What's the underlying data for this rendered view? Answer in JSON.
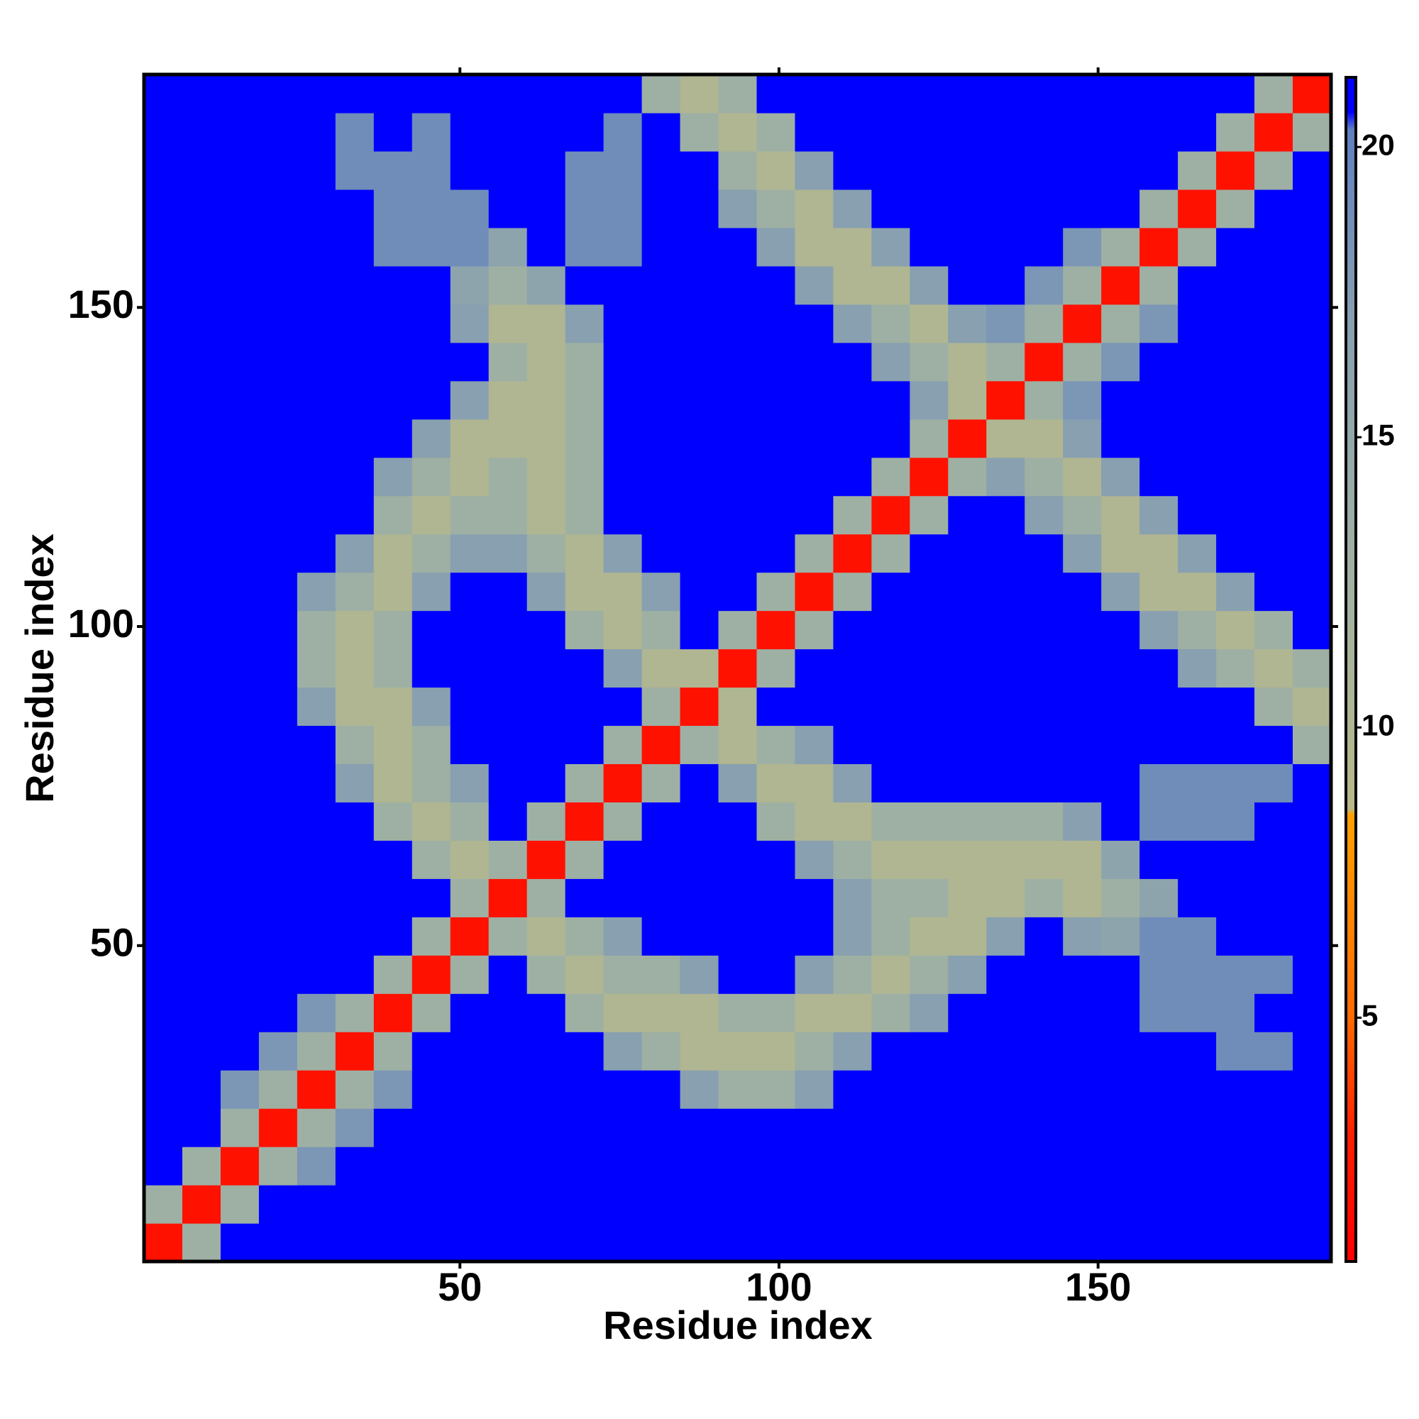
{
  "chart_data": {
    "type": "heatmap",
    "x_label": "Residue index",
    "y_label": "Residue index",
    "x": [
      3.5,
      9.5,
      15.5,
      21.5,
      27.5,
      33.5,
      39.5,
      45.5,
      51.5,
      57.5,
      63.5,
      69.5,
      75.5,
      81.5,
      87.5,
      93.5,
      99.5,
      105.5,
      111.5,
      117.5,
      123.5,
      129.5,
      135.5,
      141.5,
      147.5,
      153.5,
      159.5,
      165.5,
      171.5,
      177.5,
      183.5
    ],
    "y": [
      3.5,
      9.5,
      15.5,
      21.5,
      27.5,
      33.5,
      39.5,
      45.5,
      51.5,
      57.5,
      63.5,
      69.5,
      75.5,
      81.5,
      87.5,
      93.5,
      99.5,
      105.5,
      111.5,
      117.5,
      123.5,
      129.5,
      135.5,
      141.5,
      147.5,
      153.5,
      159.5,
      165.5,
      171.5,
      177.5,
      183.5
    ],
    "xlim": [
      0.5,
      186.5
    ],
    "ylim": [
      0.5,
      186.5
    ],
    "xticks": [
      50,
      100,
      150
    ],
    "yticks": [
      50,
      100,
      150
    ],
    "zlim": [
      0.8,
      21.2
    ],
    "zticks": [
      5,
      10,
      15,
      20
    ],
    "colorscale": [
      [
        0.8,
        "#ff0000"
      ],
      [
        3,
        "#ff2000"
      ],
      [
        5,
        "#ff6a00"
      ],
      [
        8.5,
        "#ffa000"
      ],
      [
        8.6,
        "#b8b888"
      ],
      [
        12,
        "#a4b4a0"
      ],
      [
        17,
        "#88a0b0"
      ],
      [
        20.3,
        "#6080c0"
      ],
      [
        20.6,
        "#0000ff"
      ],
      [
        21.2,
        "#0000ff"
      ]
    ],
    "z": [
      [
        2,
        13,
        21,
        21,
        21,
        21,
        21,
        21,
        21,
        21,
        21,
        21,
        21,
        21,
        21,
        21,
        21,
        21,
        21,
        21,
        21,
        21,
        21,
        21,
        21,
        21,
        21,
        21,
        21,
        21,
        21
      ],
      [
        13,
        2,
        13,
        21,
        21,
        21,
        21,
        21,
        21,
        21,
        21,
        21,
        21,
        21,
        21,
        21,
        21,
        21,
        21,
        21,
        21,
        21,
        21,
        21,
        21,
        21,
        21,
        21,
        21,
        21,
        21
      ],
      [
        21,
        13,
        2,
        13,
        18,
        21,
        21,
        21,
        21,
        21,
        21,
        21,
        21,
        21,
        21,
        21,
        21,
        21,
        21,
        21,
        21,
        21,
        21,
        21,
        21,
        21,
        21,
        21,
        21,
        21,
        21
      ],
      [
        21,
        21,
        13,
        2,
        13,
        18,
        21,
        21,
        21,
        21,
        21,
        21,
        21,
        21,
        21,
        21,
        21,
        21,
        21,
        21,
        21,
        21,
        21,
        21,
        21,
        21,
        21,
        21,
        21,
        21,
        21
      ],
      [
        21,
        21,
        18,
        13,
        2,
        13,
        18,
        21,
        21,
        21,
        21,
        21,
        21,
        21,
        17,
        13,
        13,
        17,
        21,
        21,
        21,
        21,
        21,
        21,
        21,
        21,
        21,
        21,
        21,
        21,
        21
      ],
      [
        21,
        21,
        21,
        18,
        13,
        2,
        13,
        21,
        21,
        21,
        21,
        21,
        17,
        13,
        10,
        10,
        10,
        13,
        17,
        21,
        21,
        21,
        21,
        21,
        21,
        21,
        21,
        21,
        19,
        19,
        21
      ],
      [
        21,
        21,
        21,
        21,
        18,
        13,
        2,
        13,
        21,
        21,
        21,
        13,
        10,
        10,
        10,
        13,
        13,
        10,
        10,
        13,
        17,
        21,
        21,
        21,
        21,
        21,
        19,
        19,
        19,
        21,
        21
      ],
      [
        21,
        21,
        21,
        21,
        21,
        21,
        13,
        2,
        13,
        21,
        13,
        10,
        13,
        13,
        17,
        21,
        21,
        17,
        13,
        10,
        13,
        17,
        21,
        21,
        21,
        21,
        19,
        19,
        19,
        19,
        21
      ],
      [
        21,
        21,
        21,
        21,
        21,
        21,
        21,
        13,
        2,
        13,
        10,
        13,
        17,
        21,
        21,
        21,
        21,
        21,
        17,
        13,
        10,
        10,
        17,
        21,
        17,
        16,
        19,
        19,
        21,
        21,
        21
      ],
      [
        21,
        21,
        21,
        21,
        21,
        21,
        21,
        21,
        13,
        2,
        13,
        21,
        21,
        21,
        21,
        21,
        21,
        21,
        17,
        13,
        13,
        10,
        10,
        13,
        10,
        13,
        16,
        21,
        21,
        21,
        21
      ],
      [
        21,
        21,
        21,
        21,
        21,
        21,
        21,
        13,
        10,
        13,
        2,
        13,
        21,
        21,
        21,
        21,
        21,
        17,
        13,
        10,
        10,
        10,
        10,
        10,
        10,
        16,
        21,
        21,
        21,
        21,
        21
      ],
      [
        21,
        21,
        21,
        21,
        21,
        21,
        13,
        10,
        13,
        21,
        13,
        2,
        13,
        21,
        21,
        21,
        13,
        10,
        10,
        13,
        13,
        13,
        13,
        13,
        17,
        21,
        19,
        19,
        19,
        21,
        21
      ],
      [
        21,
        21,
        21,
        21,
        21,
        17,
        10,
        13,
        17,
        21,
        21,
        13,
        2,
        13,
        21,
        17,
        10,
        10,
        17,
        21,
        21,
        21,
        21,
        21,
        21,
        21,
        19,
        19,
        19,
        19,
        21
      ],
      [
        21,
        21,
        21,
        21,
        21,
        13,
        10,
        13,
        21,
        21,
        21,
        21,
        13,
        2,
        13,
        10,
        13,
        17,
        21,
        21,
        21,
        21,
        21,
        21,
        21,
        21,
        21,
        21,
        21,
        21,
        13
      ],
      [
        21,
        21,
        21,
        21,
        17,
        10,
        10,
        17,
        21,
        21,
        21,
        21,
        21,
        13,
        2,
        10,
        21,
        21,
        21,
        21,
        21,
        21,
        21,
        21,
        21,
        21,
        21,
        21,
        21,
        13,
        10
      ],
      [
        21,
        21,
        21,
        21,
        13,
        10,
        13,
        21,
        21,
        21,
        21,
        21,
        17,
        10,
        10,
        2,
        13,
        21,
        21,
        21,
        21,
        21,
        21,
        21,
        21,
        21,
        21,
        17,
        13,
        10,
        13
      ],
      [
        21,
        21,
        21,
        21,
        13,
        10,
        13,
        21,
        21,
        21,
        21,
        13,
        10,
        13,
        21,
        13,
        2,
        13,
        21,
        21,
        21,
        21,
        21,
        21,
        21,
        21,
        17,
        13,
        10,
        13,
        21
      ],
      [
        21,
        21,
        21,
        21,
        17,
        13,
        10,
        17,
        21,
        21,
        17,
        10,
        10,
        17,
        21,
        21,
        13,
        2,
        13,
        21,
        21,
        21,
        21,
        21,
        21,
        17,
        10,
        10,
        17,
        21,
        21
      ],
      [
        21,
        21,
        21,
        21,
        21,
        17,
        10,
        13,
        17,
        17,
        13,
        10,
        17,
        21,
        21,
        21,
        21,
        13,
        2,
        13,
        21,
        21,
        21,
        21,
        17,
        10,
        10,
        17,
        21,
        21,
        21
      ],
      [
        21,
        21,
        21,
        21,
        21,
        21,
        13,
        10,
        13,
        13,
        10,
        13,
        21,
        21,
        21,
        21,
        21,
        21,
        13,
        2,
        13,
        21,
        21,
        17,
        13,
        10,
        17,
        21,
        21,
        21,
        21
      ],
      [
        21,
        21,
        21,
        21,
        21,
        21,
        17,
        13,
        10,
        13,
        10,
        13,
        21,
        21,
        21,
        21,
        21,
        21,
        21,
        13,
        2,
        13,
        17,
        13,
        10,
        17,
        21,
        21,
        21,
        21,
        21
      ],
      [
        21,
        21,
        21,
        21,
        21,
        21,
        21,
        17,
        10,
        10,
        10,
        13,
        21,
        21,
        21,
        21,
        21,
        21,
        21,
        21,
        13,
        2,
        10,
        10,
        17,
        21,
        21,
        21,
        21,
        21,
        21
      ],
      [
        21,
        21,
        21,
        21,
        21,
        21,
        21,
        21,
        17,
        10,
        10,
        13,
        21,
        21,
        21,
        21,
        21,
        21,
        21,
        21,
        17,
        10,
        2,
        13,
        18,
        21,
        21,
        21,
        21,
        21,
        21
      ],
      [
        21,
        21,
        21,
        21,
        21,
        21,
        21,
        21,
        21,
        13,
        10,
        13,
        21,
        21,
        21,
        21,
        21,
        21,
        21,
        17,
        13,
        10,
        13,
        2,
        13,
        18,
        21,
        21,
        21,
        21,
        21
      ],
      [
        21,
        21,
        21,
        21,
        21,
        21,
        21,
        21,
        17,
        10,
        10,
        17,
        21,
        21,
        21,
        21,
        21,
        21,
        17,
        13,
        10,
        17,
        18,
        13,
        2,
        13,
        18,
        21,
        21,
        21,
        21
      ],
      [
        21,
        21,
        21,
        21,
        21,
        21,
        21,
        21,
        16,
        13,
        16,
        21,
        21,
        21,
        21,
        21,
        21,
        17,
        10,
        10,
        17,
        21,
        21,
        18,
        13,
        2,
        13,
        21,
        21,
        21,
        21
      ],
      [
        21,
        21,
        21,
        21,
        21,
        21,
        19,
        19,
        19,
        16,
        21,
        19,
        19,
        21,
        21,
        21,
        17,
        10,
        10,
        17,
        21,
        21,
        21,
        21,
        18,
        13,
        2,
        13,
        21,
        21,
        21
      ],
      [
        21,
        21,
        21,
        21,
        21,
        21,
        19,
        19,
        19,
        21,
        21,
        19,
        19,
        21,
        21,
        17,
        13,
        10,
        17,
        21,
        21,
        21,
        21,
        21,
        21,
        21,
        13,
        2,
        13,
        21,
        21
      ],
      [
        21,
        21,
        21,
        21,
        21,
        19,
        19,
        19,
        21,
        21,
        21,
        19,
        19,
        21,
        21,
        13,
        10,
        17,
        21,
        21,
        21,
        21,
        21,
        21,
        21,
        21,
        21,
        13,
        2,
        13,
        21
      ],
      [
        21,
        21,
        21,
        21,
        21,
        19,
        21,
        19,
        21,
        21,
        21,
        21,
        19,
        21,
        13,
        10,
        13,
        21,
        21,
        21,
        21,
        21,
        21,
        21,
        21,
        21,
        21,
        21,
        13,
        2,
        13
      ],
      [
        21,
        21,
        21,
        21,
        21,
        21,
        21,
        21,
        21,
        21,
        21,
        21,
        21,
        13,
        10,
        13,
        21,
        21,
        21,
        21,
        21,
        21,
        21,
        21,
        21,
        21,
        21,
        21,
        21,
        13,
        2
      ]
    ]
  }
}
